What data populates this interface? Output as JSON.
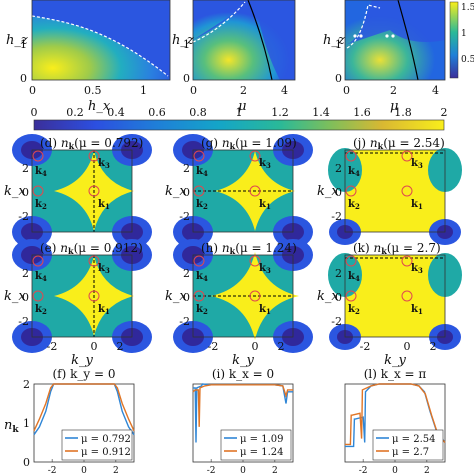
{
  "colors": {
    "yellow": "#f9ee1b",
    "teal": "#1fa9a6",
    "blue": "#2b56e0",
    "deepblue": "#30289b",
    "series1": "#2f86d6",
    "series2": "#e07526",
    "marker": "#e0494f",
    "frame": "#333333"
  },
  "top_row": {
    "panels": [
      {
        "ylabel": "h_z",
        "xlabel": "h_x",
        "xticks": [
          "0",
          "0.5",
          "1"
        ],
        "yticks": [
          "0",
          "1"
        ]
      },
      {
        "ylabel": "h_z",
        "xlabel": "μ",
        "xticks": [
          "0",
          "2",
          "4"
        ],
        "yticks": [
          "0",
          "1"
        ]
      },
      {
        "ylabel": "h_z",
        "xlabel": "μ",
        "xticks": [
          "0",
          "2",
          "4"
        ],
        "yticks": [
          "0",
          "1"
        ]
      }
    ],
    "small_colorbar_ticks": [
      "1.5",
      "1",
      "0.5"
    ]
  },
  "colorbar": {
    "ticks": [
      "0",
      "0.2",
      "0.4",
      "0.6",
      "0.8",
      "1",
      "1.2",
      "1.4",
      "1.6",
      "1.8",
      "2"
    ]
  },
  "nk_panels": [
    {
      "tag": "(d)",
      "label": "(d) n_k(μ = 0.792)",
      "mu": "0.792",
      "kpoints": [
        "k3",
        "k4",
        "k2",
        "k1"
      ]
    },
    {
      "tag": "(g)",
      "label": "(g) n_k(μ = 1.09)",
      "mu": "1.09",
      "kpoints": [
        "k3",
        "k4",
        "k2",
        "k1"
      ]
    },
    {
      "tag": "(j)",
      "label": "(j) n_k(μ = 2.54)",
      "mu": "2.54",
      "kpoints": [
        "k3",
        "k4",
        "k2",
        "k1"
      ]
    },
    {
      "tag": "(e)",
      "label": "(e) n_k(μ = 0.912)",
      "mu": "0.912",
      "kpoints": [
        "k3",
        "k4",
        "k2",
        "k1"
      ]
    },
    {
      "tag": "(h)",
      "label": "(h) n_k(μ = 1.24)",
      "mu": "1.24",
      "kpoints": [
        "k3",
        "k4",
        "k2",
        "k1"
      ]
    },
    {
      "tag": "(k)",
      "label": "(k) n_k(μ = 2.7)",
      "mu": "2.7",
      "kpoints": [
        "k3",
        "k4",
        "k2",
        "k1"
      ]
    }
  ],
  "nk_axes": {
    "ylabel": "k_x",
    "xlabel": "k_y",
    "ticks": [
      "-2",
      "0",
      "2"
    ]
  },
  "chart_data": [
    {
      "type": "line",
      "title": "(f) k_y = 0",
      "ylabel": "n_k",
      "ylim": [
        0,
        2
      ],
      "xlim": [
        -3.14,
        3.14
      ],
      "yticks": [
        "0",
        "1",
        "2"
      ],
      "xticks": [
        "-2",
        "0",
        "2"
      ],
      "series": [
        {
          "name": "μ = 0.792",
          "x": [
            -3.14,
            -2.8,
            -2.4,
            -2.1,
            -1.9,
            -1.5,
            -1,
            0,
            1,
            1.5,
            1.9,
            2.1,
            2.4,
            2.8,
            3.14
          ],
          "values": [
            0.7,
            0.9,
            1.3,
            1.8,
            2.0,
            2.0,
            2.0,
            2.0,
            2.0,
            2.0,
            2.0,
            1.8,
            1.3,
            0.9,
            0.7
          ]
        },
        {
          "name": "μ = 0.912",
          "x": [
            -3.14,
            -2.8,
            -2.4,
            -2.1,
            -1.9,
            -1.5,
            -1,
            0,
            1,
            1.5,
            1.9,
            2.1,
            2.4,
            2.8,
            3.14
          ],
          "values": [
            0.8,
            1.1,
            1.5,
            1.9,
            2.0,
            2.0,
            2.0,
            2.0,
            2.0,
            2.0,
            2.0,
            1.9,
            1.5,
            1.1,
            0.8
          ]
        }
      ],
      "legend": "bottom"
    },
    {
      "type": "line",
      "title": "(i) k_x = 0",
      "ylim": [
        0,
        2
      ],
      "xlim": [
        -3.14,
        3.14
      ],
      "xticks": [
        "-2",
        "0",
        "2"
      ],
      "series": [
        {
          "name": "μ = 1.09",
          "x": [
            -3.14,
            -3.0,
            -2.95,
            -2.9,
            -2.6,
            -2.55,
            -2.0,
            -1,
            0,
            1,
            2.0,
            2.5,
            2.7,
            2.8,
            3.14
          ],
          "values": [
            1.9,
            1.9,
            0.5,
            1.9,
            1.95,
            2.0,
            1.98,
            1.98,
            1.98,
            1.98,
            1.98,
            1.95,
            1.5,
            1.8,
            1.8
          ]
        },
        {
          "name": "μ = 1.24",
          "x": [
            -3.14,
            -3.0,
            -2.8,
            -2.75,
            -2.7,
            -2.4,
            -2.0,
            -1,
            0,
            1,
            2.0,
            2.5,
            2.7,
            2.8,
            3.14
          ],
          "values": [
            1.8,
            1.85,
            1.85,
            0.9,
            1.9,
            1.95,
            1.98,
            1.98,
            1.98,
            1.98,
            1.98,
            1.95,
            1.7,
            1.85,
            1.85
          ]
        }
      ],
      "legend": "bottom"
    },
    {
      "type": "line",
      "title": "(l) k_x = π",
      "ylim": [
        0,
        2
      ],
      "xlim": [
        -3.14,
        3.14
      ],
      "xticks": [
        "-2",
        "0",
        "2"
      ],
      "series": [
        {
          "name": "μ = 2.54",
          "x": [
            -3.14,
            -2.6,
            -2.55,
            -2.5,
            -2.0,
            -1.9,
            -1.85,
            -1.5,
            -1,
            0,
            1,
            1.5,
            1.85,
            2.2,
            2.6,
            3.14
          ],
          "values": [
            0.4,
            0.4,
            1.1,
            1.1,
            1.15,
            0.5,
            1.8,
            1.95,
            2.0,
            2.0,
            2.0,
            1.95,
            1.8,
            1.3,
            0.8,
            0.5
          ]
        },
        {
          "name": "μ = 2.7",
          "x": [
            -3.14,
            -2.8,
            -2.75,
            -2.7,
            -2.2,
            -2.1,
            -2.05,
            -1.5,
            -1,
            0,
            1,
            1.5,
            1.9,
            2.3,
            2.7,
            3.14
          ],
          "values": [
            0.45,
            0.45,
            1.2,
            1.2,
            1.25,
            0.6,
            1.85,
            1.95,
            2.0,
            2.0,
            2.0,
            1.95,
            1.75,
            1.2,
            0.7,
            0.5
          ]
        }
      ],
      "legend": "bottom"
    }
  ]
}
